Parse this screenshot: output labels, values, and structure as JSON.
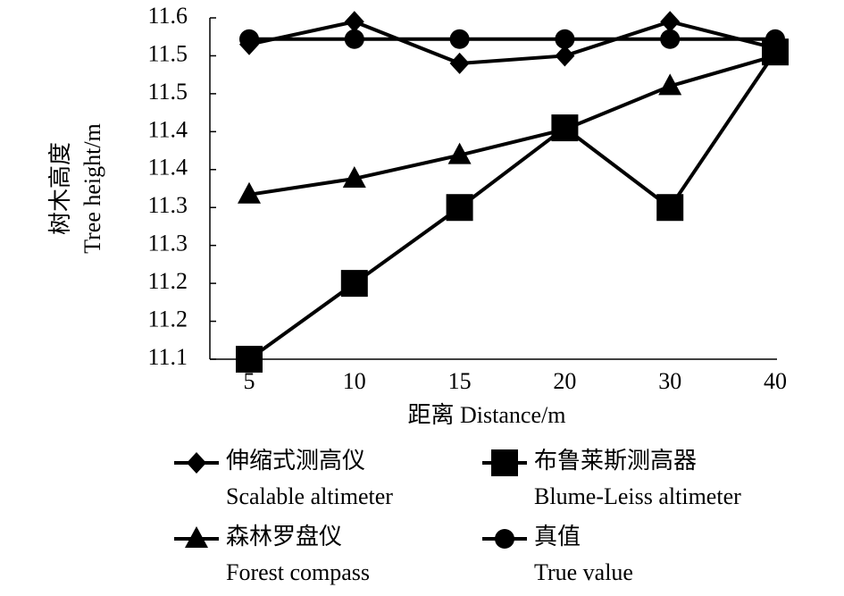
{
  "chart_data": {
    "type": "line",
    "ylabel": [
      "树木高度",
      "Tree height/m"
    ],
    "xlabel": "距离 Distance/m",
    "categories": [
      "5",
      "10",
      "15",
      "20",
      "30",
      "40"
    ],
    "ylim": [
      11.1,
      11.55
    ],
    "yticks": [
      {
        "value": 11.1,
        "label": "11.1"
      },
      {
        "value": 11.15,
        "label": "11.2"
      },
      {
        "value": 11.2,
        "label": "11.2"
      },
      {
        "value": 11.25,
        "label": "11.3"
      },
      {
        "value": 11.3,
        "label": "11.3"
      },
      {
        "value": 11.35,
        "label": "11.4"
      },
      {
        "value": 11.4,
        "label": "11.4"
      },
      {
        "value": 11.45,
        "label": "11.5"
      },
      {
        "value": 11.5,
        "label": "11.5"
      },
      {
        "value": 11.55,
        "label": "11.6"
      }
    ],
    "series": [
      {
        "name": [
          "伸缩式测高仪",
          "Scalable altimeter"
        ],
        "marker": "diamond",
        "color": "#000000",
        "values": [
          11.515,
          11.545,
          11.49,
          11.5,
          11.545,
          11.51
        ]
      },
      {
        "name": [
          "布鲁莱斯测高器",
          "Blume-Leiss altimeter"
        ],
        "marker": "square",
        "color": "#000000",
        "values": [
          11.1,
          11.2,
          11.3,
          11.405,
          11.3,
          11.505
        ]
      },
      {
        "name": [
          "森林罗盘仪",
          "Forest compass"
        ],
        "marker": "triangle",
        "color": "#000000",
        "values": [
          11.317,
          11.338,
          11.369,
          11.403,
          11.46,
          11.5
        ]
      },
      {
        "name": [
          "真值",
          "True value"
        ],
        "marker": "circle",
        "color": "#000000",
        "values": [
          11.522,
          11.522,
          11.522,
          11.522,
          11.522,
          11.522
        ]
      }
    ]
  }
}
